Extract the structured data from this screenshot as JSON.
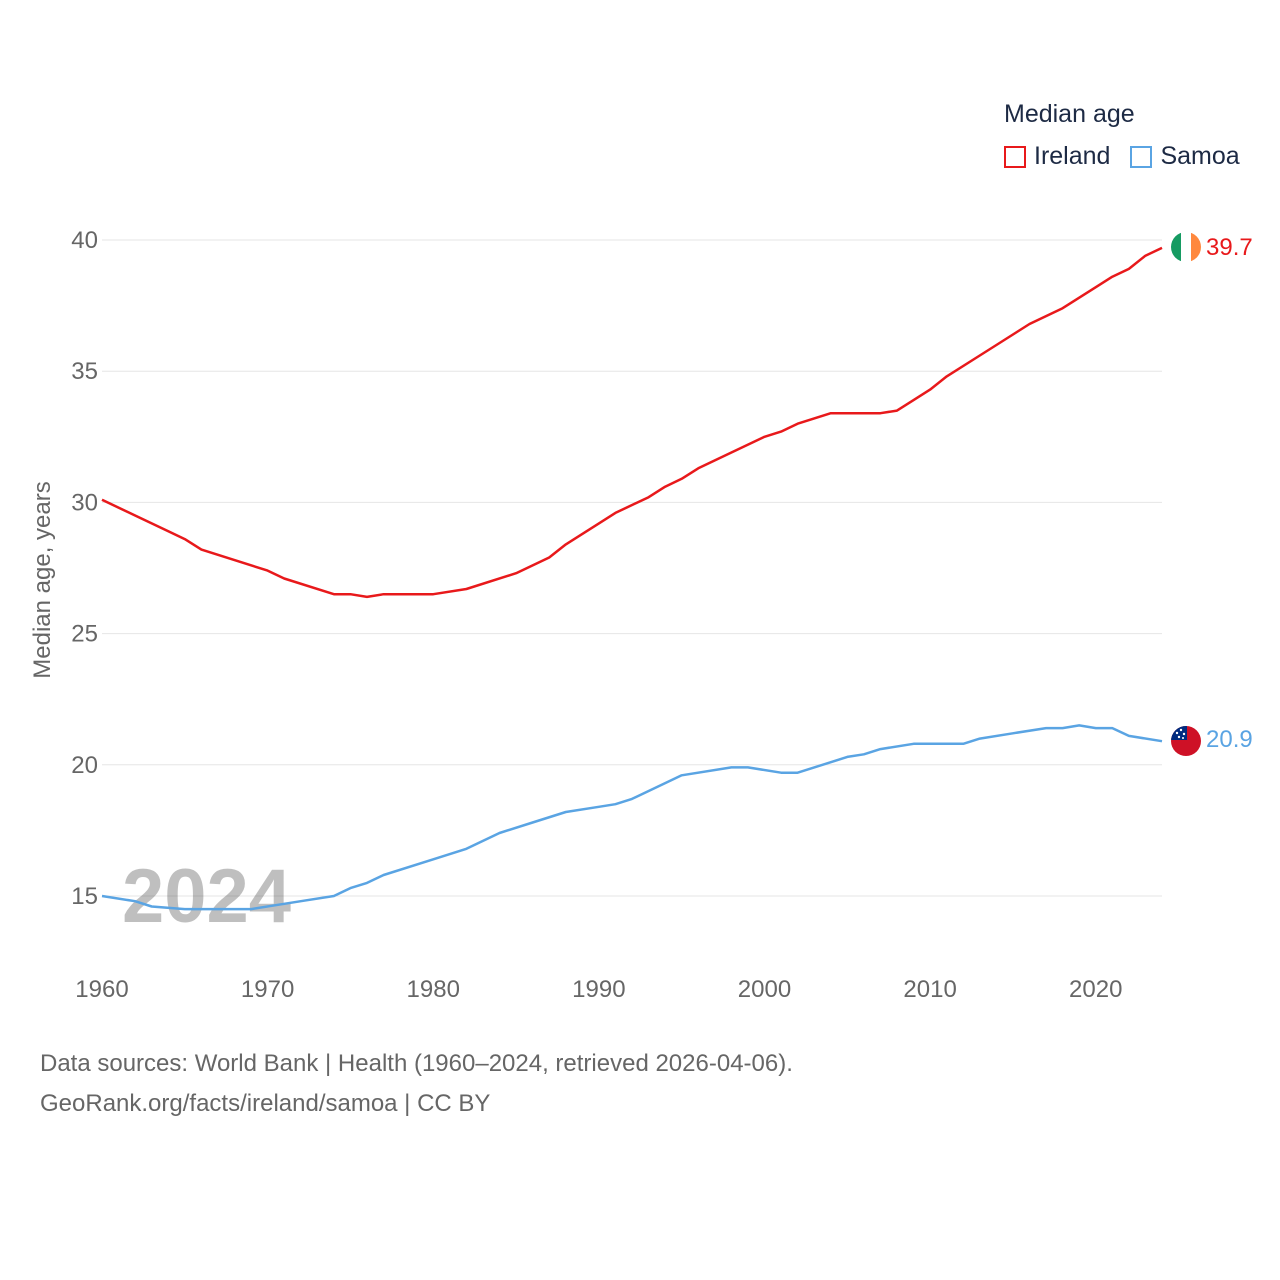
{
  "chart_data": {
    "type": "line",
    "legend_title": "Median age",
    "ylabel": "Median age, years",
    "xlim": [
      1960,
      2024
    ],
    "ylim": [
      13,
      42
    ],
    "xticks": [
      1960,
      1970,
      1980,
      1990,
      2000,
      2010,
      2020
    ],
    "yticks": [
      15,
      20,
      25,
      30,
      35,
      40
    ],
    "year_watermark": "2024",
    "series": [
      {
        "name": "Ireland",
        "color": "#e8191b",
        "flag": "ireland-flag",
        "end_label": "39.7",
        "x": [
          1960,
          1962,
          1964,
          1965,
          1966,
          1968,
          1970,
          1971,
          1974,
          1975,
          1976,
          1977,
          1980,
          1982,
          1985,
          1987,
          1988,
          1990,
          1991,
          1993,
          1994,
          1995,
          1996,
          1998,
          2000,
          2001,
          2002,
          2003,
          2004,
          2005,
          2006,
          2007,
          2008,
          2009,
          2010,
          2011,
          2013,
          2014,
          2016,
          2018,
          2019,
          2020,
          2021,
          2022,
          2023,
          2024
        ],
        "values": [
          30.1,
          29.5,
          28.9,
          28.6,
          28.2,
          27.8,
          27.4,
          27.1,
          26.5,
          26.5,
          26.4,
          26.5,
          26.5,
          26.7,
          27.3,
          27.9,
          28.4,
          29.2,
          29.6,
          30.2,
          30.6,
          30.9,
          31.3,
          31.9,
          32.5,
          32.7,
          33.0,
          33.2,
          33.4,
          33.4,
          33.4,
          33.4,
          33.5,
          33.9,
          34.3,
          34.8,
          35.6,
          36.0,
          36.8,
          37.4,
          37.8,
          38.2,
          38.6,
          38.9,
          39.4,
          39.7
        ]
      },
      {
        "name": "Samoa",
        "color": "#5aa4e3",
        "flag": "samoa-flag",
        "end_label": "20.9",
        "x": [
          1960,
          1962,
          1963,
          1965,
          1966,
          1969,
          1972,
          1974,
          1975,
          1976,
          1977,
          1980,
          1982,
          1984,
          1986,
          1988,
          1990,
          1991,
          1992,
          1995,
          1998,
          1999,
          2001,
          2002,
          2004,
          2005,
          2006,
          2007,
          2009,
          2011,
          2012,
          2013,
          2015,
          2017,
          2018,
          2019,
          2020,
          2021,
          2022,
          2024
        ],
        "values": [
          15.0,
          14.8,
          14.6,
          14.5,
          14.5,
          14.5,
          14.8,
          15.0,
          15.3,
          15.5,
          15.8,
          16.4,
          16.8,
          17.4,
          17.8,
          18.2,
          18.4,
          18.5,
          18.7,
          19.6,
          19.9,
          19.9,
          19.7,
          19.7,
          20.1,
          20.3,
          20.4,
          20.6,
          20.8,
          20.8,
          20.8,
          21.0,
          21.2,
          21.4,
          21.4,
          21.5,
          21.4,
          21.4,
          21.1,
          20.9
        ]
      }
    ],
    "source_line_1": "Data sources: World Bank | Health (1960–2024, retrieved 2026-04-06).",
    "source_line_2": "GeoRank.org/facts/ireland/samoa | CC BY"
  }
}
